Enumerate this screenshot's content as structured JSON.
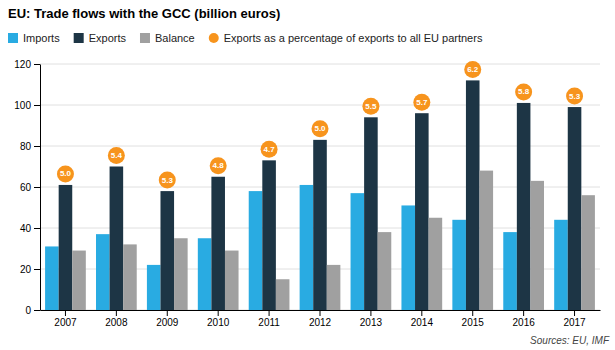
{
  "chart_data": {
    "type": "bar",
    "title": "EU: Trade flows with the GCC (billion euros)",
    "source": "Sources: EU, IMF",
    "categories": [
      "2007",
      "2008",
      "2009",
      "2010",
      "2011",
      "2012",
      "2013",
      "2014",
      "2015",
      "2016",
      "2017"
    ],
    "series": [
      {
        "name": "Imports",
        "color": "#29abe2",
        "values": [
          31,
          37,
          22,
          35,
          58,
          61,
          57,
          51,
          44,
          38,
          44
        ]
      },
      {
        "name": "Exports",
        "color": "#1d3545",
        "values": [
          61,
          70,
          58,
          65,
          73,
          83,
          94,
          96,
          112,
          101,
          99
        ]
      },
      {
        "name": "Balance",
        "color": "#a0a0a0",
        "values": [
          29,
          32,
          35,
          29,
          15,
          22,
          38,
          45,
          68,
          63,
          56
        ]
      },
      {
        "name": "Exports as a percentage of exports to all EU partners",
        "type": "annotation",
        "marker": "circle",
        "color": "#f7941d",
        "values": [
          5.0,
          5.4,
          5.3,
          4.8,
          4.7,
          5.0,
          5.5,
          5.7,
          6.2,
          5.8,
          5.3
        ],
        "value_labels": [
          "5.0",
          "5.4",
          "5.3",
          "4.8",
          "4.7",
          "5.0",
          "5.5",
          "5.7",
          "6.2",
          "5.8",
          "5.3"
        ]
      }
    ],
    "ylim": [
      0,
      120
    ],
    "yticks": [
      0,
      20,
      40,
      60,
      80,
      100,
      120
    ],
    "grid": true,
    "legend": "top"
  }
}
